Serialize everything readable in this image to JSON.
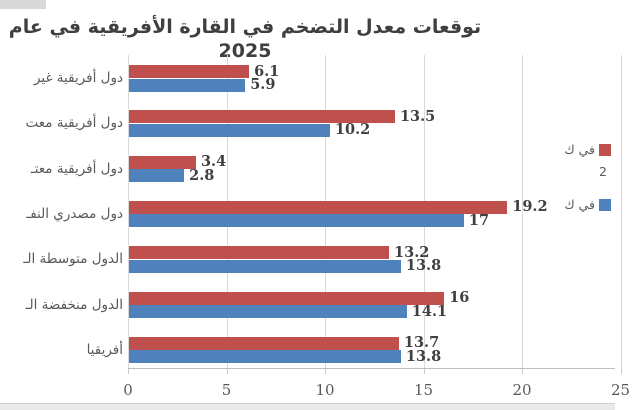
{
  "title": "توقعات معدل التضخم في القارة الأفريقية في عام 2025",
  "chart_data": {
    "type": "bar",
    "orientation": "horizontal",
    "title": "توقعات معدل التضخم في القارة الأفريقية في عام 2025",
    "categories": [
      "دول أفريقية غير",
      "دول أفريقية معت",
      "دول أفريقية معتـ",
      "دول مصدري النفـ",
      "الدول متوسطة الـ",
      "الدول منخفضة الـ",
      "أفريقيا"
    ],
    "categories_note": "labels truncated by left crop of screenshot",
    "series": [
      {
        "name": "series-red",
        "legend_label_line1": "في ك",
        "legend_label_line2": "2",
        "color": "#C0504D",
        "values": [
          6.1,
          13.5,
          3.4,
          19.2,
          13.2,
          16,
          13.7
        ],
        "labels": [
          "6.1",
          "13.5",
          "3.4",
          "19.2",
          "13.2",
          "16",
          "13.7"
        ]
      },
      {
        "name": "series-blue",
        "legend_label_line1": "في ك",
        "legend_label_line2": "",
        "color": "#4F81BD",
        "values": [
          5.9,
          10.2,
          2.8,
          17,
          13.8,
          14.1,
          13.8
        ],
        "labels": [
          "5.9",
          "10.2",
          "2.8",
          "17",
          "13.8",
          "14.1",
          "13.8"
        ]
      }
    ],
    "xticks": [
      0,
      5,
      10,
      15,
      20,
      25
    ],
    "xlim": [
      0,
      25
    ],
    "grid": true,
    "legend_position": "right (cropped by screenshot edge)"
  },
  "colors": {
    "series_red": "#C0504D",
    "series_blue": "#4F81BD",
    "gridline": "#D9D9D9",
    "axis_line": "#BFBFBF",
    "tick_mark": "#CCCCCC",
    "text_dark": "#404040",
    "text_gray": "#595959",
    "window_edge": "#D9D9D9",
    "bottom_strip": "#E9E9E9"
  }
}
